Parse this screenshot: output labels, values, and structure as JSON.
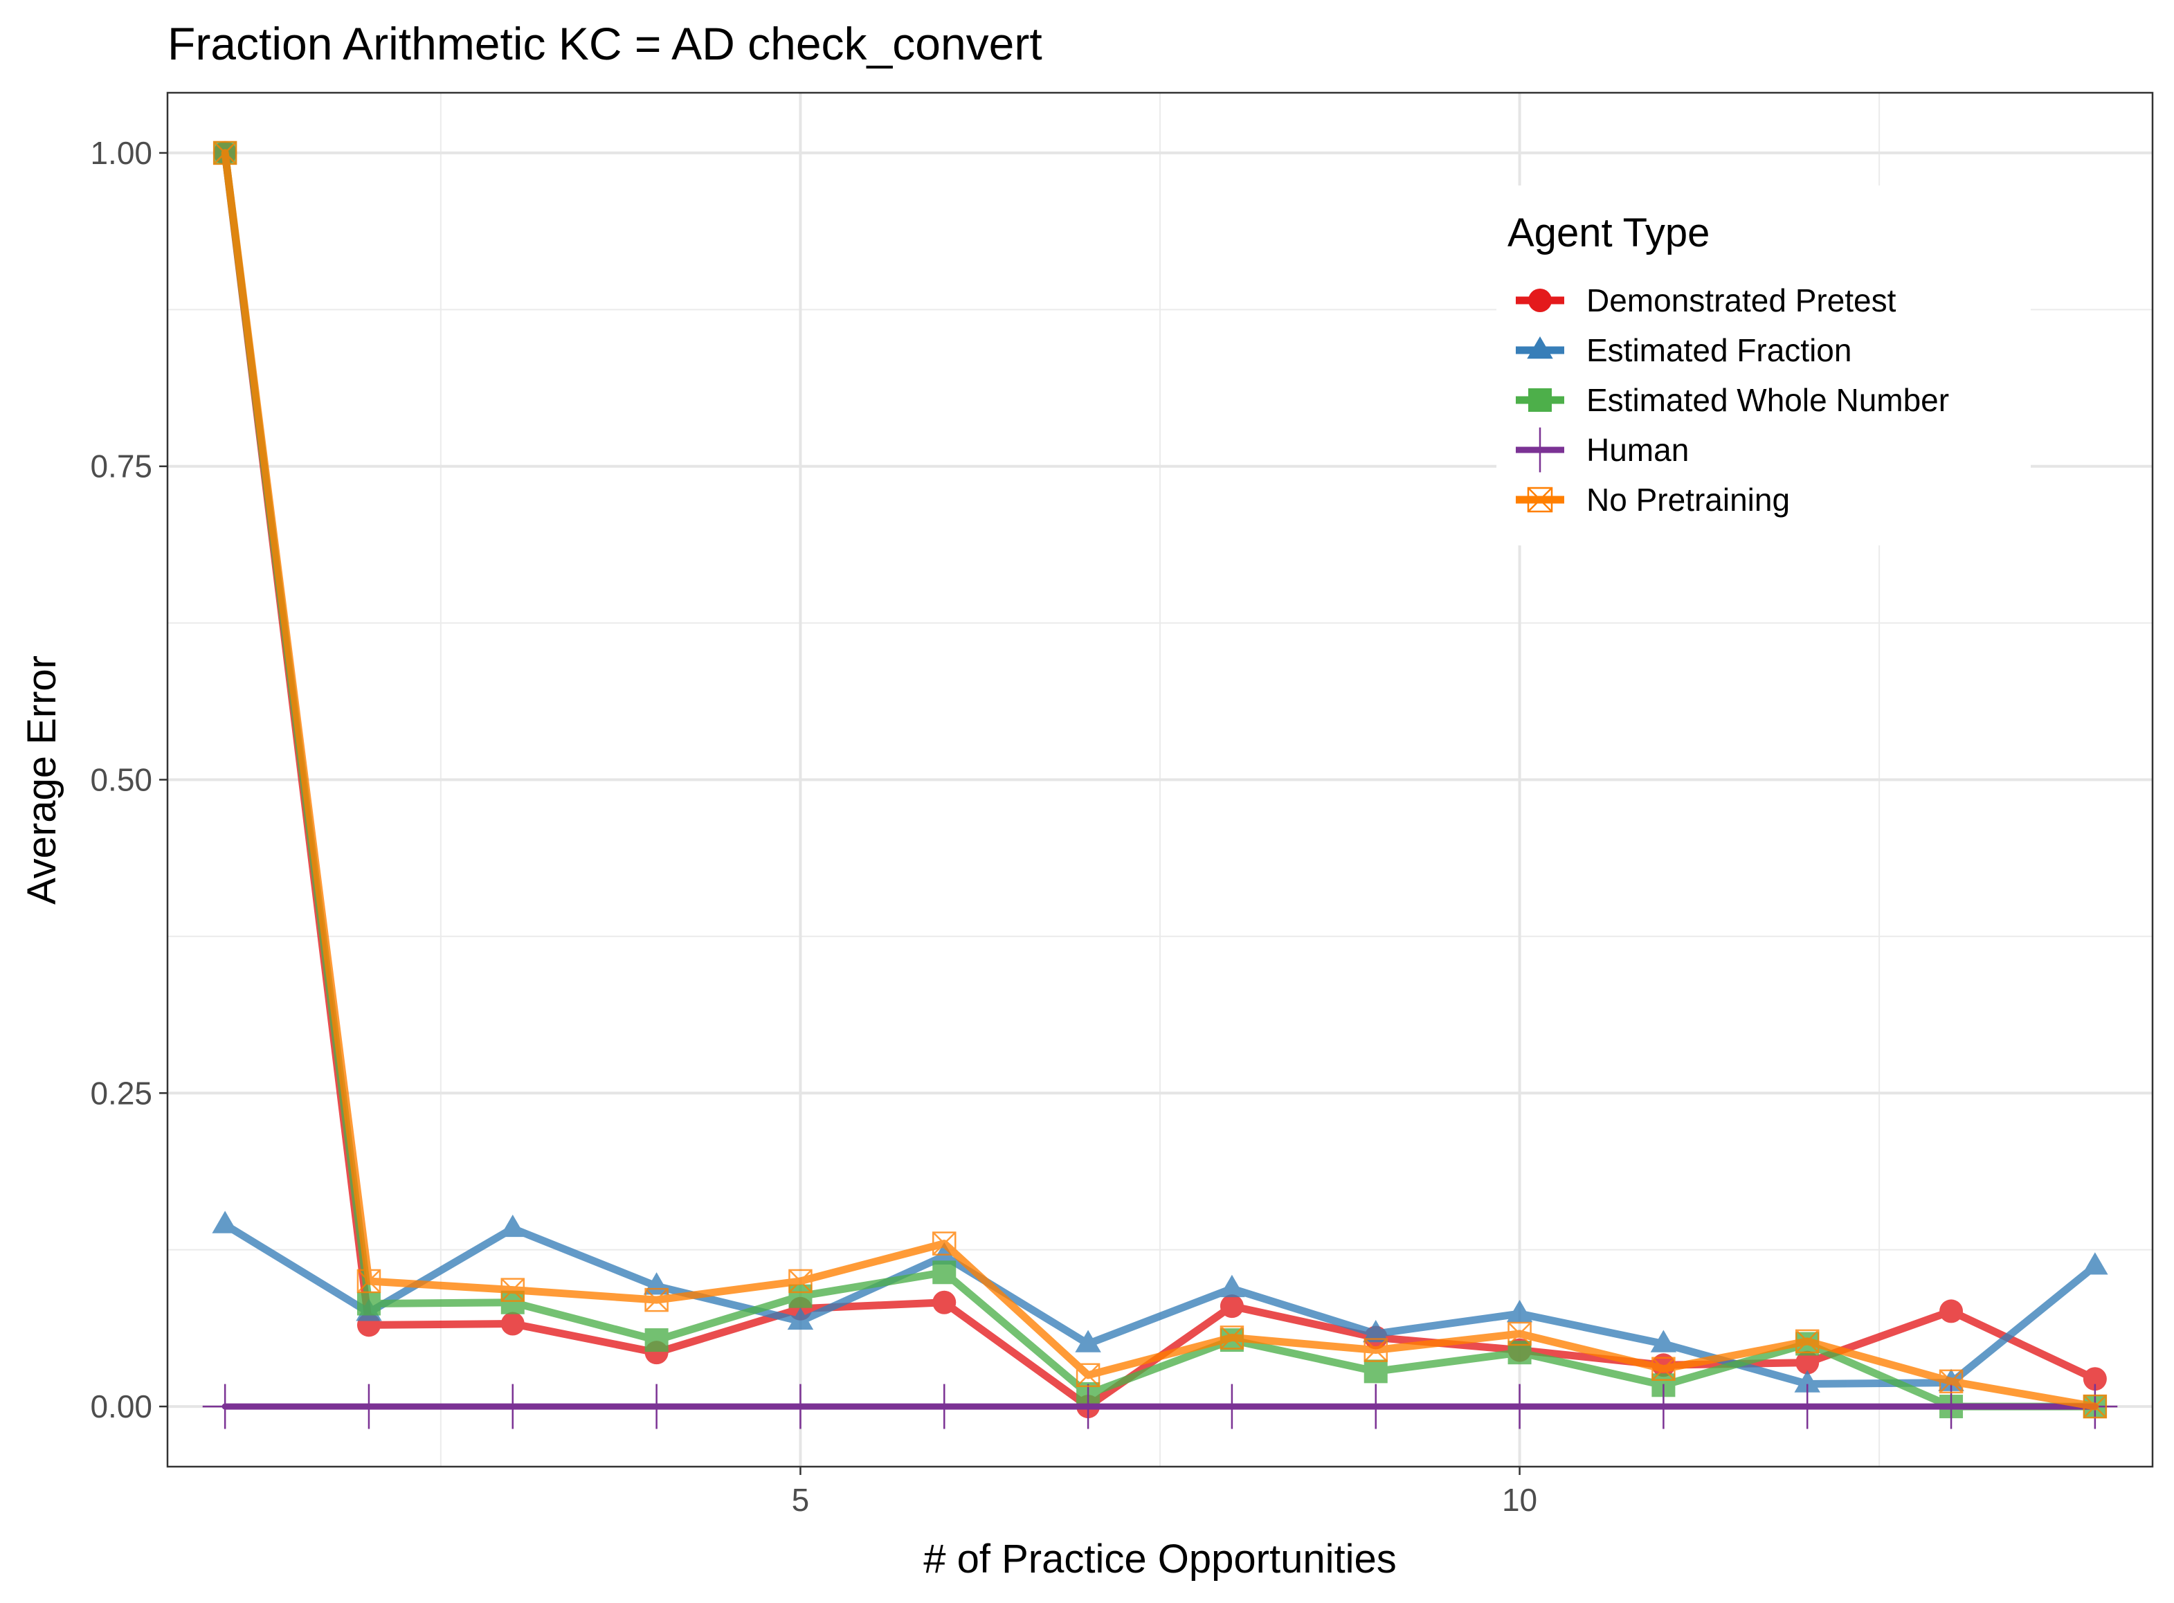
{
  "chart_data": {
    "type": "line",
    "title": "Fraction Arithmetic KC =  AD check_convert",
    "xlabel": "# of Practice Opportunities",
    "ylabel": "Average Error",
    "xlim": [
      0.6,
      14.4
    ],
    "ylim": [
      -0.048,
      1.048
    ],
    "x_ticks": [
      5,
      10
    ],
    "x_tick_labels": [
      "5",
      "10"
    ],
    "y_ticks": [
      0,
      0.25,
      0.5,
      0.75,
      1.0
    ],
    "y_tick_labels": [
      "0.00",
      "0.25",
      "0.50",
      "0.75",
      "1.00"
    ],
    "grid": true,
    "legend": {
      "title": "Agent Type",
      "position": "top-right"
    },
    "x": [
      1,
      2,
      3,
      4,
      5,
      6,
      7,
      8,
      9,
      10,
      11,
      12,
      13,
      14
    ],
    "series": [
      {
        "name": "Demonstrated Pretest",
        "color": "#e41a1c",
        "marker": "circle",
        "values": [
          1.0,
          0.065,
          0.066,
          0.043,
          0.078,
          0.083,
          0.0,
          0.08,
          0.055,
          0.045,
          0.033,
          0.035,
          0.076,
          0.022
        ]
      },
      {
        "name": "Estimated Fraction",
        "color": "#377eb8",
        "marker": "triangle",
        "values": [
          0.145,
          0.075,
          0.142,
          0.096,
          0.068,
          0.12,
          0.05,
          0.094,
          0.058,
          0.074,
          0.05,
          0.018,
          0.019,
          0.112
        ]
      },
      {
        "name": "Estimated Whole Number",
        "color": "#4daf4a",
        "marker": "square",
        "values": [
          1.0,
          0.082,
          0.083,
          0.053,
          0.088,
          0.107,
          0.01,
          0.053,
          0.028,
          0.043,
          0.017,
          0.05,
          0.0,
          0.0
        ]
      },
      {
        "name": "Human",
        "color": "#7b3294",
        "marker": "plus",
        "values": [
          0,
          0,
          0,
          0,
          0,
          0,
          0,
          0,
          0,
          0,
          0,
          0,
          0,
          0
        ]
      },
      {
        "name": "No Pretraining",
        "color": "#ff7f00",
        "marker": "square-cross",
        "values": [
          1.0,
          0.1,
          0.093,
          0.085,
          0.1,
          0.13,
          0.025,
          0.055,
          0.045,
          0.058,
          0.03,
          0.052,
          0.02,
          0.0
        ]
      }
    ]
  }
}
